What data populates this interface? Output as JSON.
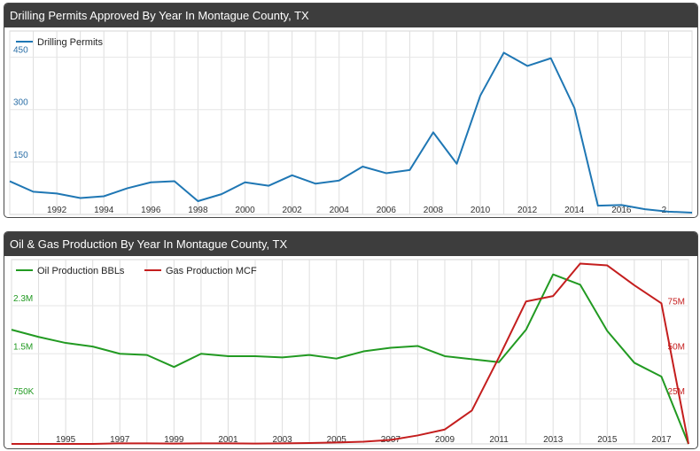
{
  "charts": [
    {
      "title": "Drilling Permits Approved By Year In Montague County, TX",
      "chart_data": {
        "type": "line",
        "title": "Drilling Permits Approved By Year In Montague County, TX",
        "x": [
          1990,
          1991,
          1992,
          1993,
          1994,
          1995,
          1996,
          1997,
          1998,
          1999,
          2000,
          2001,
          2002,
          2003,
          2004,
          2005,
          2006,
          2007,
          2008,
          2009,
          2010,
          2011,
          2012,
          2013,
          2014,
          2015,
          2016,
          2017,
          2018,
          2019
        ],
        "series": [
          {
            "name": "Drilling Permits",
            "color": "#1f77b4",
            "values": [
              95,
              65,
              60,
              47,
              52,
              75,
              92,
              95,
              38,
              58,
              92,
              82,
              112,
              88,
              97,
              137,
              118,
              127,
              235,
              145,
              340,
              463,
              425,
              447,
              305,
              25,
              27,
              15,
              8,
              5
            ]
          }
        ],
        "x_tick_labels": [
          "1992",
          "1994",
          "1996",
          "1998",
          "2000",
          "2002",
          "2004",
          "2006",
          "2008",
          "2010",
          "2012",
          "2014",
          "2016",
          "2…"
        ],
        "y_tick_labels": [
          "150",
          "300",
          "450"
        ],
        "xlim": [
          1990,
          2019
        ],
        "ylim": [
          0,
          525
        ],
        "grid": true,
        "legend": "top-left",
        "xlabel": "",
        "ylabel": ""
      }
    },
    {
      "title": "Oil & Gas Production By Year In Montague County, TX",
      "chart_data": {
        "type": "line",
        "title": "Oil & Gas Production By Year In Montague County, TX",
        "x": [
          1993,
          1994,
          1995,
          1996,
          1997,
          1998,
          1999,
          2000,
          2001,
          2002,
          2003,
          2004,
          2005,
          2006,
          2007,
          2008,
          2009,
          2010,
          2011,
          2012,
          2013,
          2014,
          2015,
          2016,
          2017,
          2018
        ],
        "series": [
          {
            "name": "Oil Production BBLs",
            "color": "#229a22",
            "axis": "left",
            "values": [
              1900000,
              1780000,
              1680000,
              1620000,
              1500000,
              1480000,
              1280000,
              1500000,
              1460000,
              1460000,
              1440000,
              1480000,
              1420000,
              1540000,
              1600000,
              1630000,
              1460000,
              1410000,
              1360000,
              1900000,
              2820000,
              2650000,
              1880000,
              1350000,
              1120000,
              0
            ]
          },
          {
            "name": "Gas Production MCF",
            "color": "#c41e1e",
            "axis": "right",
            "values": [
              0,
              0,
              0,
              0,
              300000,
              300000,
              200000,
              300000,
              300000,
              200000,
              300000,
              500000,
              800000,
              1200000,
              2200000,
              4700000,
              8000000,
              18500000,
              48000000,
              79000000,
              82000000,
              100000000,
              99000000,
              88000000,
              78000000,
              0
            ]
          }
        ],
        "x_tick_labels": [
          "1995",
          "1997",
          "1999",
          "2001",
          "2003",
          "2005",
          "2007",
          "2009",
          "2011",
          "2013",
          "2015",
          "2017"
        ],
        "y_left_tick_labels": [
          "750K",
          "1.5M",
          "2.3M"
        ],
        "y_right_tick_labels": [
          "25M",
          "50M",
          "75M"
        ],
        "xlim": [
          1993,
          2018
        ],
        "ylim_left": [
          0,
          3066667
        ],
        "ylim_right": [
          0,
          102222222
        ],
        "grid": true,
        "legend": "top-left",
        "xlabel": "",
        "ylabel": ""
      }
    }
  ]
}
